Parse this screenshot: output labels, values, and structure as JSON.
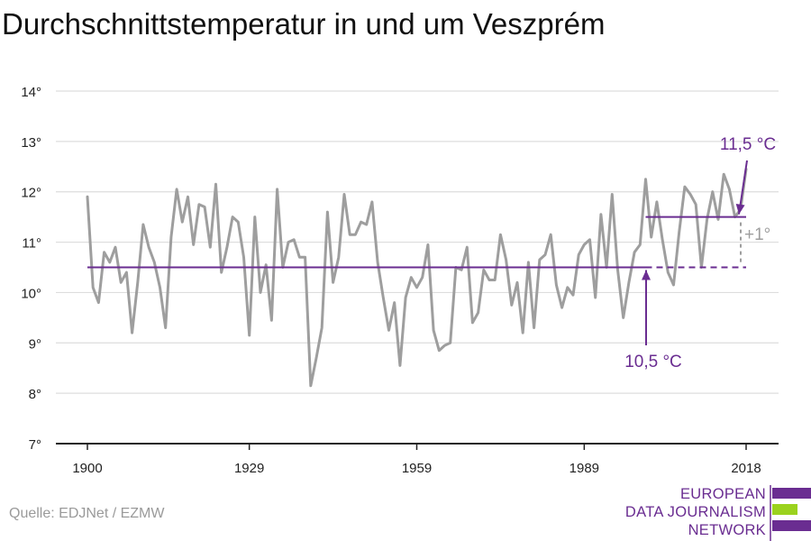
{
  "title": "Durchschnittstemperatur in und um Veszprém",
  "source": "Quelle: EDJNet / EZMW",
  "logo": {
    "lines": [
      "EUROPEAN",
      "DATA JOURNALISM",
      "NETWORK"
    ],
    "colors": {
      "purple": "#6a2d91",
      "green": "#9bd21e"
    }
  },
  "colors": {
    "series": "#9e9e9e",
    "reference": "#6a2d91",
    "grid": "#dddddd",
    "axis": "#222222",
    "diff": "#9e9e9e"
  },
  "chart_data": {
    "type": "line",
    "title": "Durchschnittstemperatur in und um Veszprém",
    "xlim": [
      1900,
      2018
    ],
    "ylim": [
      7,
      14
    ],
    "x_ticks": [
      1900,
      1929,
      1959,
      1989,
      2018
    ],
    "y_ticks": [
      7,
      8,
      9,
      10,
      11,
      12,
      13,
      14
    ],
    "y_tick_labels": [
      "7°",
      "8°",
      "9°",
      "10°",
      "11°",
      "12°",
      "13°",
      "14°"
    ],
    "grid": true,
    "series": [
      {
        "x": [
          1900,
          1901,
          1902,
          1903,
          1904,
          1905,
          1906,
          1907,
          1908,
          1909,
          1910,
          1911,
          1912,
          1913,
          1914,
          1915,
          1916,
          1917,
          1918,
          1919,
          1920,
          1921,
          1922,
          1923,
          1924,
          1925,
          1926,
          1927,
          1928,
          1929,
          1930,
          1931,
          1932,
          1933,
          1934,
          1935,
          1936,
          1937,
          1938,
          1939,
          1940,
          1941,
          1942,
          1943,
          1944,
          1945,
          1946,
          1947,
          1948,
          1949,
          1950,
          1951,
          1952,
          1953,
          1954,
          1955,
          1956,
          1957,
          1958,
          1959,
          1960,
          1961,
          1962,
          1963,
          1964,
          1965,
          1966,
          1967,
          1968,
          1969,
          1970,
          1971,
          1972,
          1973,
          1974,
          1975,
          1976,
          1977,
          1978,
          1979,
          1980,
          1981,
          1982,
          1983,
          1984,
          1985,
          1986,
          1987,
          1988,
          1989,
          1990,
          1991,
          1992,
          1993,
          1994,
          1995,
          1996,
          1997,
          1998,
          1999,
          2000,
          2001,
          2002,
          2003,
          2004,
          2005,
          2006,
          2007,
          2008,
          2009,
          2010,
          2011,
          2012,
          2013,
          2014,
          2015,
          2016,
          2017,
          2018
        ],
        "values": [
          11.9,
          10.1,
          9.8,
          10.8,
          10.6,
          10.9,
          10.2,
          10.4,
          9.2,
          10.2,
          11.35,
          10.9,
          10.6,
          10.1,
          9.3,
          11.1,
          12.05,
          11.4,
          11.9,
          10.95,
          11.75,
          11.7,
          10.9,
          12.15,
          10.4,
          10.9,
          11.5,
          11.4,
          10.7,
          9.15,
          11.5,
          10.0,
          10.55,
          9.45,
          12.05,
          10.5,
          11.0,
          11.05,
          10.7,
          10.7,
          8.15,
          8.7,
          9.3,
          11.6,
          10.2,
          10.7,
          11.95,
          11.15,
          11.15,
          11.4,
          11.35,
          11.8,
          10.6,
          9.9,
          9.25,
          9.8,
          8.55,
          9.9,
          10.3,
          10.1,
          10.3,
          10.95,
          9.25,
          8.85,
          8.95,
          9.0,
          10.5,
          10.45,
          10.9,
          9.4,
          9.6,
          10.45,
          10.25,
          10.25,
          11.15,
          10.65,
          9.75,
          10.2,
          9.2,
          10.6,
          9.3,
          10.65,
          10.75,
          11.15,
          10.15,
          9.7,
          10.1,
          9.95,
          10.75,
          10.95,
          11.05,
          9.9,
          11.55,
          10.5,
          11.95,
          10.45,
          9.5,
          10.2,
          10.8,
          10.95,
          12.25,
          11.1,
          11.8,
          11.05,
          10.4,
          10.15,
          11.2,
          12.1,
          11.95,
          11.75,
          10.5,
          11.45,
          12.0,
          11.45,
          12.35,
          12.05,
          11.5,
          11.65,
          12.45
        ]
      }
    ],
    "reference_lines": [
      {
        "label": "10,5 °C",
        "value": 10.5,
        "from": 1900,
        "to": 2000,
        "dashed_to": 2018
      },
      {
        "label": "11,5 °C",
        "value": 11.5,
        "from": 2000,
        "to": 2018
      }
    ],
    "difference_label": "+1°"
  }
}
